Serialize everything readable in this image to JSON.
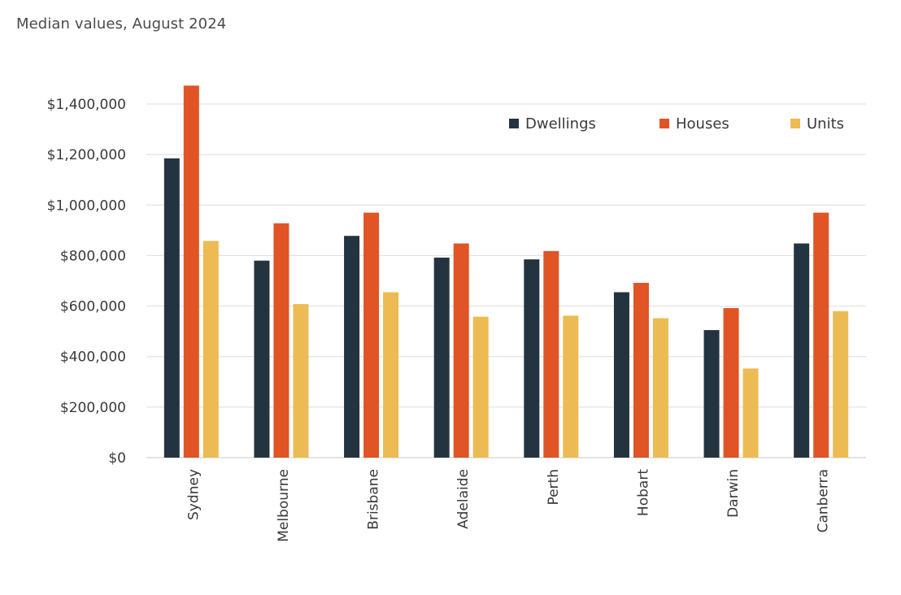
{
  "subtitle": "Median values, August 2024",
  "chart_data": {
    "type": "bar",
    "title": "",
    "subtitle": "Median values, August 2024",
    "xlabel": "",
    "ylabel": "",
    "ylim": [
      0,
      1400000
    ],
    "y_ticks": [
      0,
      200000,
      400000,
      600000,
      800000,
      1000000,
      1200000,
      1400000
    ],
    "y_tick_labels": [
      "$0",
      "$200,000",
      "$400,000",
      "$600,000",
      "$800,000",
      "$1,000,000",
      "$1,200,000",
      "$1,400,000"
    ],
    "categories": [
      "Sydney",
      "Melbourne",
      "Brisbane",
      "Adelaide",
      "Perth",
      "Hobart",
      "Darwin",
      "Canberra"
    ],
    "series": [
      {
        "name": "Dwellings",
        "color": "#243340",
        "values": [
          1185000,
          780000,
          878000,
          792000,
          785000,
          655000,
          505000,
          848000
        ]
      },
      {
        "name": "Houses",
        "color": "#e05426",
        "values": [
          1473000,
          928000,
          970000,
          848000,
          818000,
          692000,
          592000,
          970000
        ]
      },
      {
        "name": "Units",
        "color": "#ecbb53",
        "values": [
          858000,
          608000,
          655000,
          558000,
          562000,
          552000,
          353000,
          580000
        ]
      }
    ],
    "grid": true,
    "legend_position": "top-right"
  }
}
